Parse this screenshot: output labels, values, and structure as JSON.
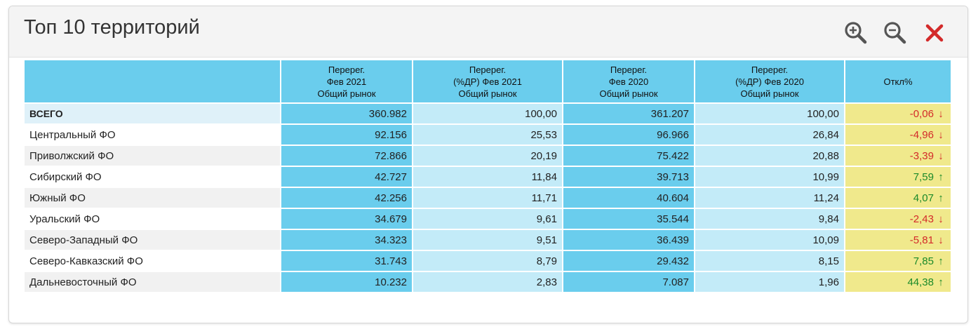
{
  "panel": {
    "title": "Топ 10 территорий"
  },
  "toolbar": {
    "zoom_in_icon": "zoom-in-icon",
    "zoom_out_icon": "zoom-out-icon",
    "close_icon": "close-icon",
    "icon_color": "#555555",
    "close_color": "#d32a2a"
  },
  "table": {
    "headers": [
      "",
      "Перерег.\nФев 2021\nОбщий рынок",
      "Перерег.\n(%ДР) Фев 2021\nОбщий рынок",
      "Перерег.\nФев 2020\nОбщий рынок",
      "Перерег.\n(%ДР) Фев 2020\nОбщий рынок",
      "Откл%"
    ],
    "rows": [
      {
        "name": "ВСЕГО",
        "v2021": "360.982",
        "p2021": "100,00",
        "v2020": "361.207",
        "p2020": "100,00",
        "dev": "-0,06",
        "trend": "down"
      },
      {
        "name": "Центральный ФО",
        "v2021": "92.156",
        "p2021": "25,53",
        "v2020": "96.966",
        "p2020": "26,84",
        "dev": "-4,96",
        "trend": "down"
      },
      {
        "name": "Приволжский ФО",
        "v2021": "72.866",
        "p2021": "20,19",
        "v2020": "75.422",
        "p2020": "20,88",
        "dev": "-3,39",
        "trend": "down"
      },
      {
        "name": "Сибирский ФО",
        "v2021": "42.727",
        "p2021": "11,84",
        "v2020": "39.713",
        "p2020": "10,99",
        "dev": "7,59",
        "trend": "up"
      },
      {
        "name": "Южный ФО",
        "v2021": "42.256",
        "p2021": "11,71",
        "v2020": "40.604",
        "p2020": "11,24",
        "dev": "4,07",
        "trend": "up"
      },
      {
        "name": "Уральский ФО",
        "v2021": "34.679",
        "p2021": "9,61",
        "v2020": "35.544",
        "p2020": "9,84",
        "dev": "-2,43",
        "trend": "down"
      },
      {
        "name": "Северо-Западный ФО",
        "v2021": "34.323",
        "p2021": "9,51",
        "v2020": "36.439",
        "p2020": "10,09",
        "dev": "-5,81",
        "trend": "down"
      },
      {
        "name": "Северо-Кавказский ФО",
        "v2021": "31.743",
        "p2021": "8,79",
        "v2020": "29.432",
        "p2020": "8,15",
        "dev": "7,85",
        "trend": "up"
      },
      {
        "name": "Дальневосточный ФО",
        "v2021": "10.232",
        "p2021": "2,83",
        "v2020": "7.087",
        "p2020": "1,96",
        "dev": "44,38",
        "trend": "up"
      }
    ]
  },
  "colors": {
    "header_blue": "#6acded",
    "light_blue": "#c3ebf8",
    "deviation_yellow": "#f0e98c",
    "negative_red": "#d32a2a",
    "positive_green": "#1b8a2a"
  }
}
